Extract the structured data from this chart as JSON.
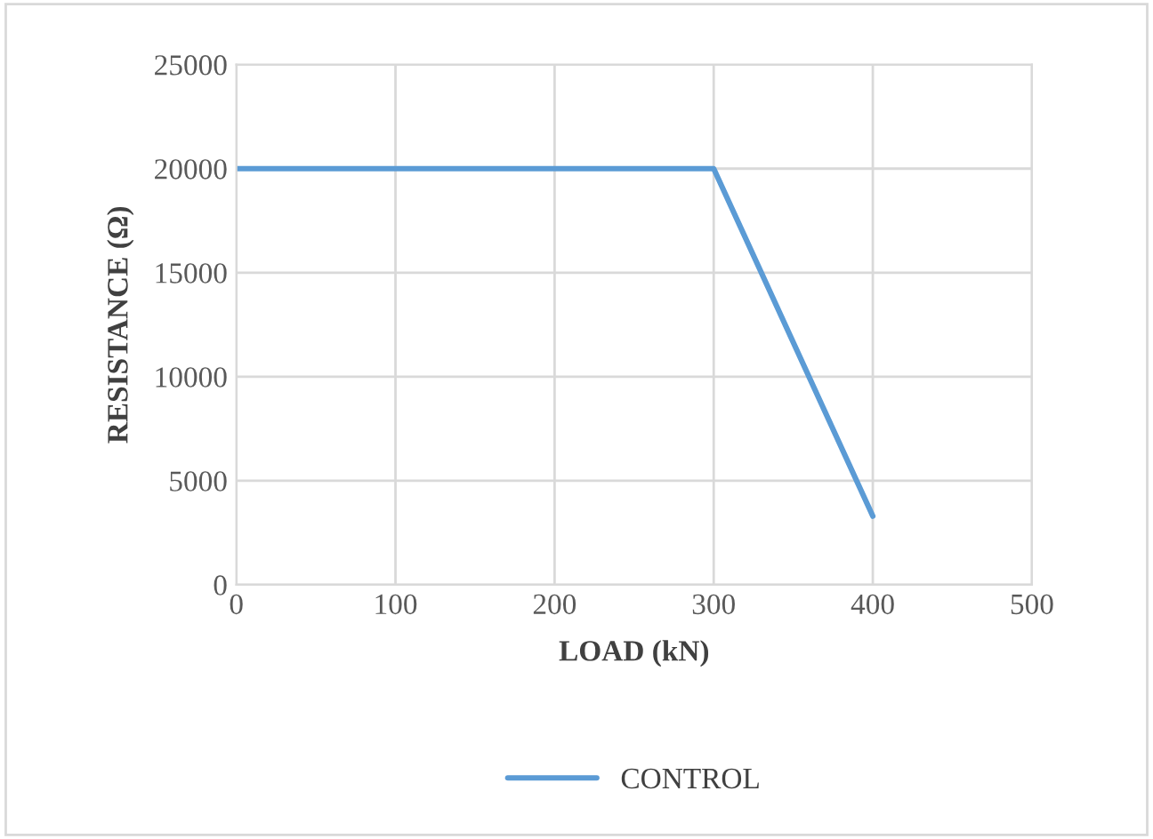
{
  "chart_data": {
    "type": "line",
    "xlabel": "LOAD (kN)",
    "ylabel": "RESISTANCE (Ω)",
    "x": [
      0,
      100,
      200,
      300,
      400
    ],
    "series": [
      {
        "name": "CONTROL",
        "color": "#5b9bd5",
        "values": [
          20000,
          20000,
          20000,
          20000,
          3300
        ]
      }
    ],
    "xlim": [
      0,
      500
    ],
    "xticks": [
      0,
      100,
      200,
      300,
      400,
      500
    ],
    "ylim": [
      0,
      25000
    ],
    "yticks": [
      0,
      5000,
      10000,
      15000,
      20000,
      25000
    ],
    "grid": true,
    "legend": "bottom",
    "marker": "none",
    "line_style": "solid"
  }
}
